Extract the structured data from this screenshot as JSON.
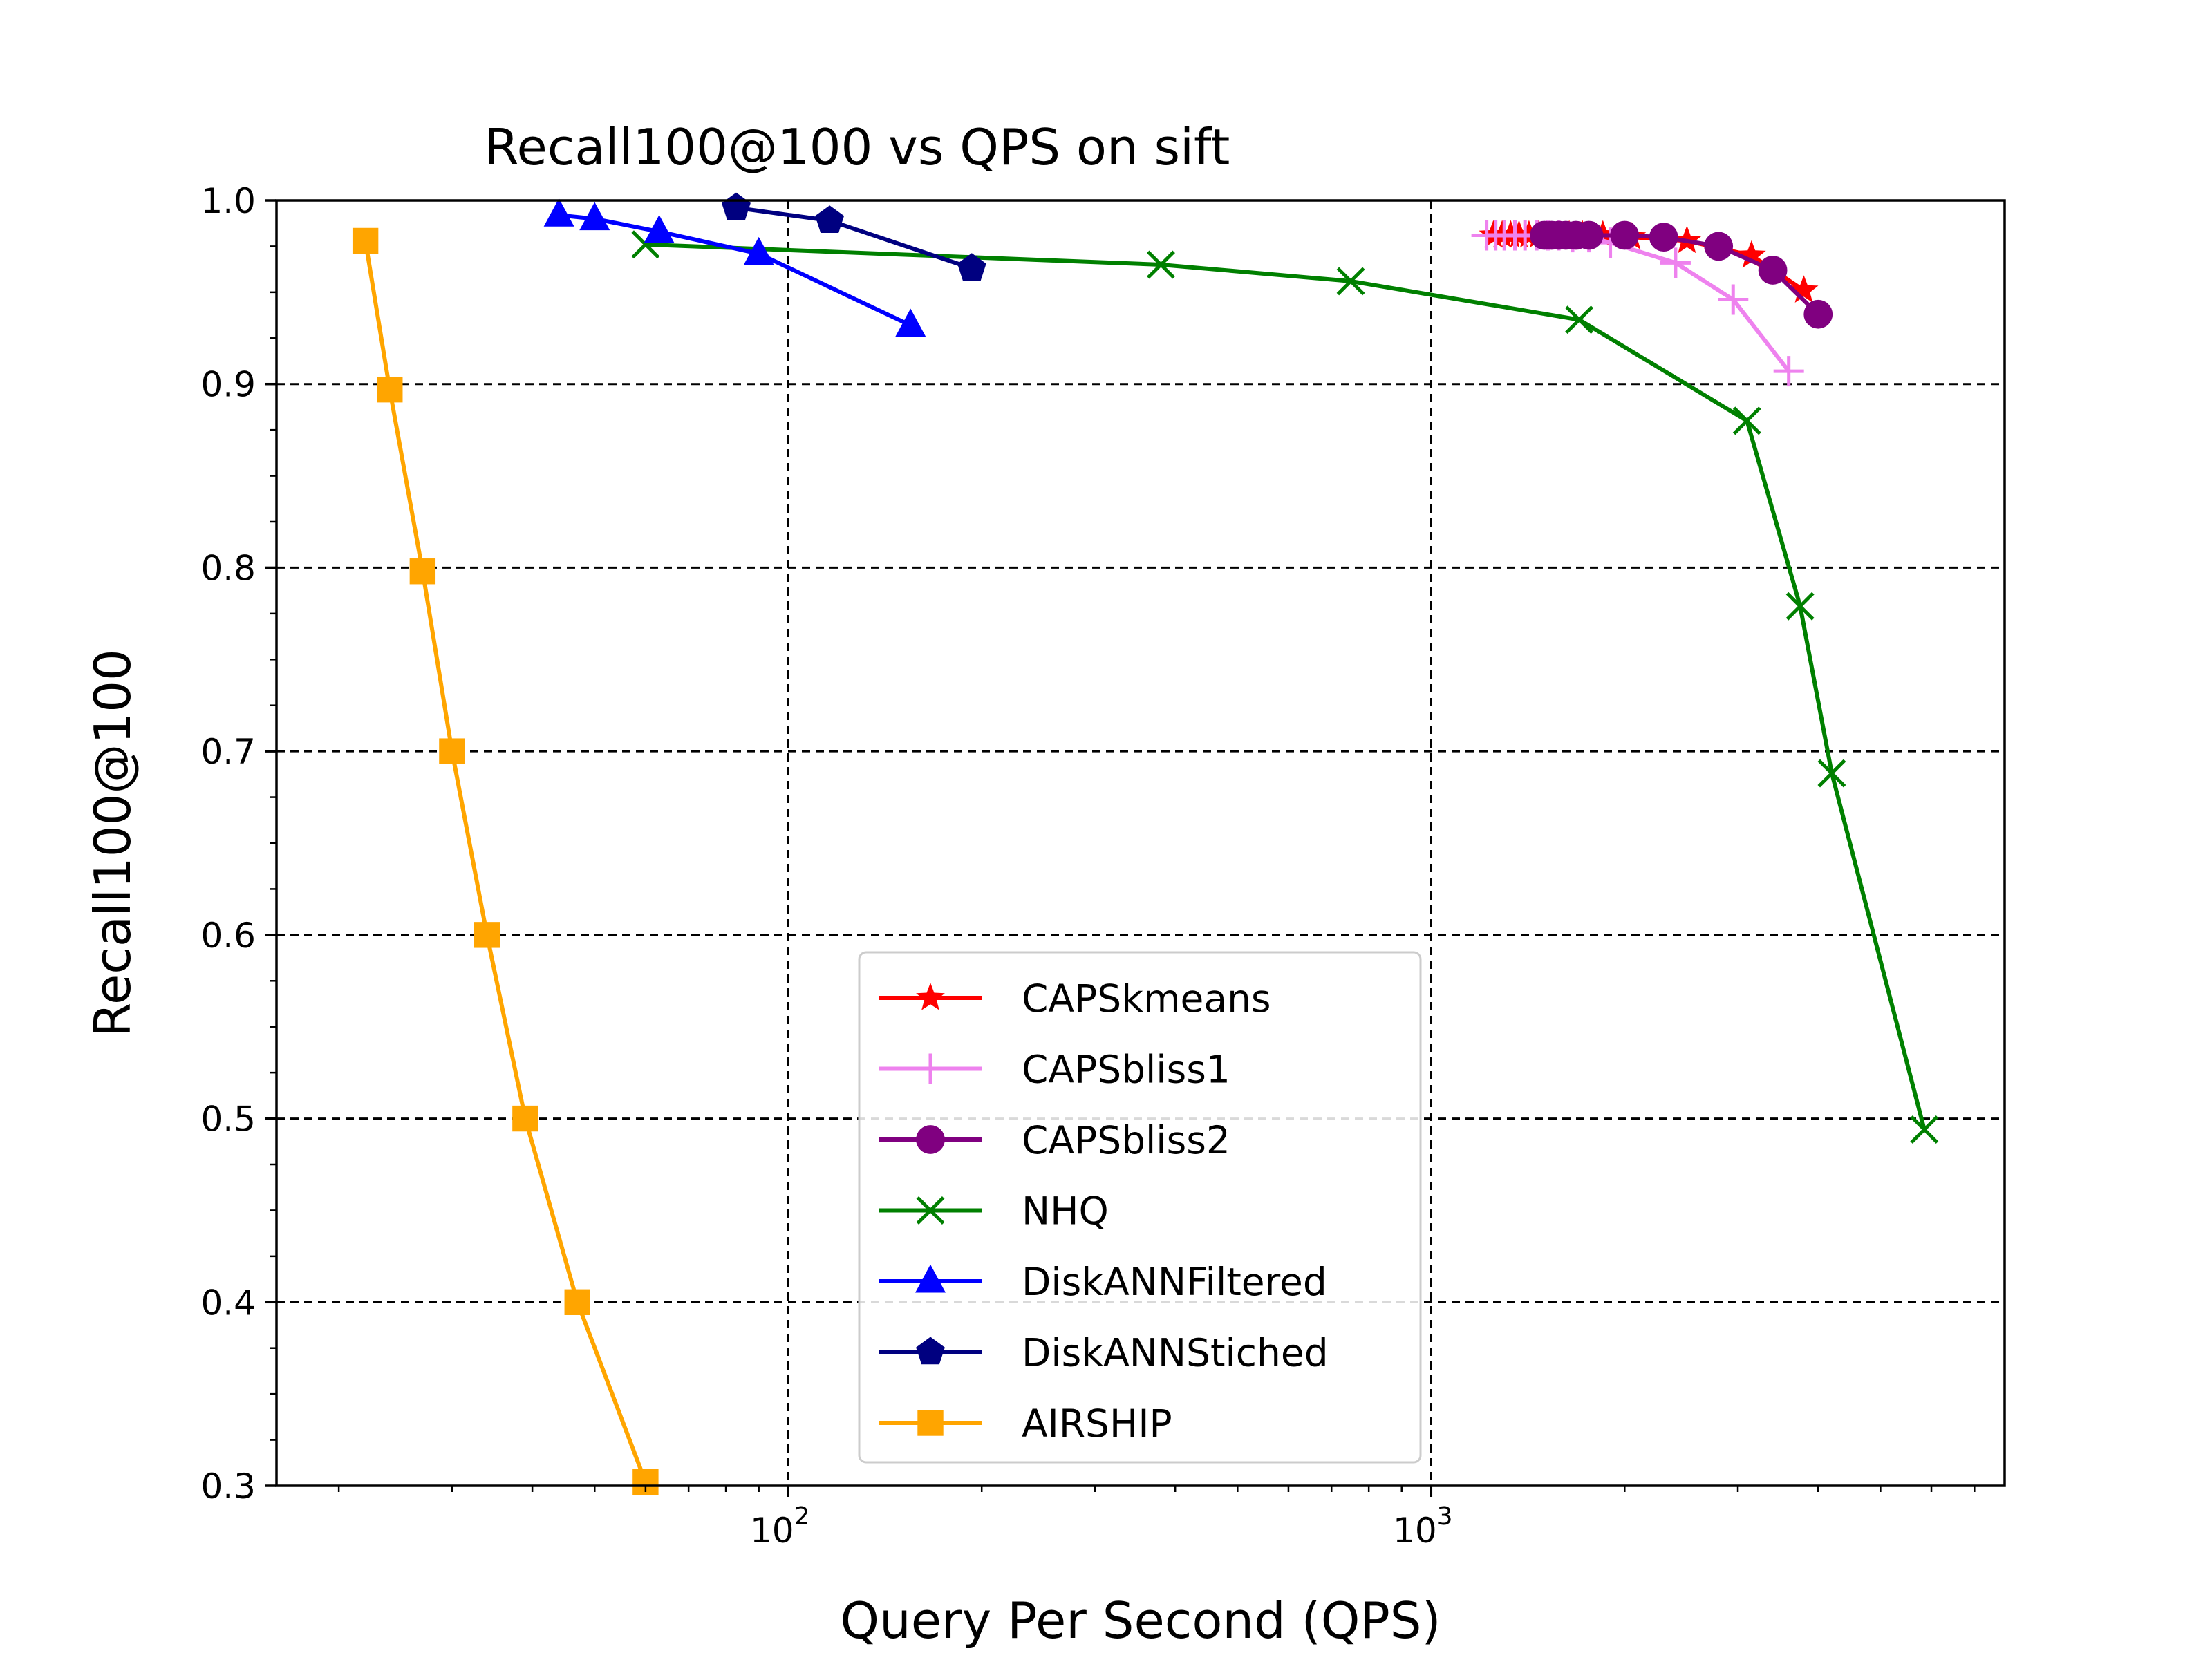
{
  "chart_data": {
    "type": "line",
    "title": "Recall100@100 vs QPS on sift",
    "xlabel": "Query Per Second (QPS)",
    "ylabel": "Recall100@100",
    "xscale": "log",
    "xlim": [
      16,
      7800
    ],
    "ylim": [
      0.3,
      1.0
    ],
    "xticks": [
      {
        "base": "10",
        "exp": "2",
        "value": 100
      },
      {
        "base": "10",
        "exp": "3",
        "value": 1000
      }
    ],
    "yticks": [
      "0.3",
      "0.4",
      "0.5",
      "0.6",
      "0.7",
      "0.8",
      "0.9",
      "1.0"
    ],
    "grid": true,
    "legend_position": "lower center",
    "series": [
      {
        "name": "CAPSkmeans",
        "color": "#ff0000",
        "marker": "star",
        "x": [
          1250,
          1290,
          1330,
          1370,
          1420,
          1470,
          1520,
          1570,
          1640,
          1720,
          1850,
          2050,
          2500,
          3150,
          3800
        ],
        "y": [
          0.981,
          0.981,
          0.981,
          0.981,
          0.981,
          0.981,
          0.981,
          0.981,
          0.981,
          0.981,
          0.981,
          0.98,
          0.978,
          0.97,
          0.951
        ]
      },
      {
        "name": "CAPSbliss1",
        "color": "#ee82ee",
        "marker": "plus",
        "x": [
          1220,
          1260,
          1300,
          1350,
          1400,
          1460,
          1520,
          1580,
          1660,
          1760,
          1900,
          2400,
          2950,
          3600
        ],
        "y": [
          0.981,
          0.981,
          0.981,
          0.981,
          0.981,
          0.981,
          0.981,
          0.981,
          0.98,
          0.98,
          0.977,
          0.966,
          0.946,
          0.907
        ]
      },
      {
        "name": "CAPSbliss2",
        "color": "#800080",
        "marker": "circle",
        "x": [
          1500,
          1540,
          1580,
          1620,
          1680,
          1760,
          2000,
          2300,
          2800,
          3400,
          4000
        ],
        "y": [
          0.981,
          0.981,
          0.981,
          0.981,
          0.981,
          0.981,
          0.981,
          0.98,
          0.975,
          0.962,
          0.938
        ]
      },
      {
        "name": "NHQ",
        "color": "#008000",
        "marker": "x",
        "x": [
          60,
          380,
          750,
          1700,
          3100,
          3750,
          4200,
          5850
        ],
        "y": [
          0.976,
          0.965,
          0.956,
          0.935,
          0.88,
          0.779,
          0.688,
          0.494
        ]
      },
      {
        "name": "DiskANNFiltered",
        "color": "#0000ff",
        "marker": "triangle",
        "x": [
          44,
          50,
          63,
          90,
          155
        ],
        "y": [
          0.992,
          0.99,
          0.983,
          0.971,
          0.932
        ]
      },
      {
        "name": "DiskANNStiched",
        "color": "#000080",
        "marker": "pentagon",
        "x": [
          83,
          116,
          193
        ],
        "y": [
          0.996,
          0.989,
          0.963
        ]
      },
      {
        "name": "AIRSHIP",
        "color": "#ffa500",
        "marker": "square",
        "x": [
          22,
          24,
          27,
          30,
          34,
          39,
          47,
          60
        ],
        "y": [
          0.978,
          0.897,
          0.798,
          0.7,
          0.6,
          0.5,
          0.4,
          0.302
        ]
      }
    ]
  }
}
